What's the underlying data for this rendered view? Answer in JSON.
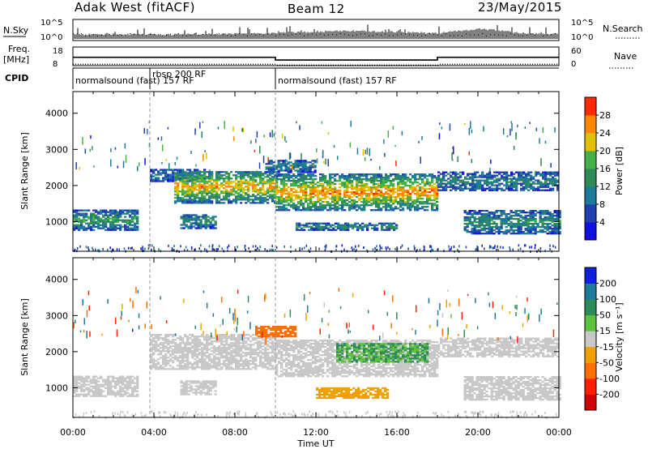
{
  "header": {
    "station": "Adak West (fitACF)",
    "beam": "Beam 12",
    "date": "23/May/2015"
  },
  "labels": {
    "nsky": "N.Sky",
    "nsearch": "N.Search",
    "freq": "Freq.",
    "freq_unit": "[MHz]",
    "nave": "Nave",
    "cpid": "CPID",
    "ylabel": "Slant Range [km]",
    "xlabel": "Time UT",
    "power_label": "Power [dB]",
    "velocity_label": "Velocity [m s⁻¹]"
  },
  "noise_ticks": {
    "left": [
      "10^5",
      "10^0"
    ],
    "right": [
      "10^5",
      "10^0"
    ]
  },
  "freq_ticks": {
    "left": [
      "18",
      "8"
    ],
    "right": [
      "60",
      "0"
    ]
  },
  "cpid_segments": [
    {
      "name": "normalsound (fast) 157 RF",
      "start": 0,
      "end": 3.8
    },
    {
      "name": "rbsp 200 RF",
      "start": 3.8,
      "end": 10.0
    },
    {
      "name": "normalsound (fast) 157 RF",
      "start": 10.0,
      "end": 24
    }
  ],
  "chart_data": [
    {
      "type": "line",
      "name": "noise-panel",
      "ylim": [
        0,
        5
      ],
      "series": [
        {
          "name": "N.Sky",
          "x": [
            0,
            2,
            4,
            6,
            8,
            10,
            12,
            14,
            16,
            18,
            19,
            20,
            21,
            22,
            24
          ],
          "values": [
            1.2,
            1.3,
            1.2,
            1.3,
            1.4,
            1.6,
            1.9,
            2.1,
            1.8,
            1.5,
            2.0,
            2.6,
            2.2,
            1.6,
            1.3
          ]
        }
      ]
    },
    {
      "type": "line",
      "name": "frequency-panel",
      "ylim": [
        8,
        18
      ],
      "series": [
        {
          "name": "Freq.",
          "x": [
            0,
            10.0,
            10.0,
            18.0,
            18.0,
            24
          ],
          "values": [
            12.5,
            12.5,
            11.0,
            11.0,
            12.5,
            12.5
          ]
        },
        {
          "name": "Nave",
          "x": [
            0,
            10.0,
            10.0,
            18.0,
            18.0,
            24
          ],
          "values": [
            9.0,
            9.0,
            8.6,
            8.6,
            9.0,
            9.0
          ]
        }
      ]
    },
    {
      "type": "heatmap",
      "name": "power-panel",
      "xlabel": "Time UT",
      "ylabel": "Slant Range [km]",
      "xlim": [
        0,
        24
      ],
      "ylim": [
        180,
        4600
      ],
      "xticks": [
        "00:00",
        "04:00",
        "08:00",
        "12:00",
        "16:00",
        "20:00",
        "00:00"
      ],
      "yticks": [
        1000,
        2000,
        3000,
        4000
      ],
      "colorbar": {
        "label": "Power [dB]",
        "ticks": [
          "4",
          "8",
          "12",
          "16",
          "20",
          "24",
          "28"
        ],
        "colors": [
          "#1010e0",
          "#2040b0",
          "#1e7a9a",
          "#2e8b57",
          "#48b048",
          "#e0c000",
          "#ff8800",
          "#ff2a00"
        ]
      },
      "bands": [
        {
          "t": [
            0,
            3.2
          ],
          "range": [
            750,
            1300
          ],
          "level": 0.35
        },
        {
          "t": [
            3.8,
            6.5
          ],
          "range": [
            2100,
            2450
          ],
          "level": 0.2
        },
        {
          "t": [
            5.0,
            10.0
          ],
          "range": [
            1500,
            2400
          ],
          "level": 0.65
        },
        {
          "t": [
            5.3,
            7.0
          ],
          "range": [
            800,
            1200
          ],
          "level": 0.3
        },
        {
          "t": [
            9.5,
            12.0
          ],
          "range": [
            2350,
            2700
          ],
          "level": 0.2
        },
        {
          "t": [
            10.0,
            18.0
          ],
          "range": [
            1300,
            2300
          ],
          "level": 0.7
        },
        {
          "t": [
            11.0,
            16.0
          ],
          "range": [
            750,
            950
          ],
          "level": 0.3
        },
        {
          "t": [
            18.0,
            24.0
          ],
          "range": [
            1850,
            2350
          ],
          "level": 0.25
        },
        {
          "t": [
            19.3,
            24.0
          ],
          "range": [
            650,
            1300
          ],
          "level": 0.3
        }
      ]
    },
    {
      "type": "heatmap",
      "name": "velocity-panel",
      "xlabel": "Time UT",
      "ylabel": "Slant Range [km]",
      "xlim": [
        0,
        24
      ],
      "ylim": [
        180,
        4600
      ],
      "xticks": [
        "00:00",
        "04:00",
        "08:00",
        "12:00",
        "16:00",
        "20:00",
        "00:00"
      ],
      "yticks": [
        1000,
        2000,
        3000,
        4000
      ],
      "colorbar": {
        "label": "Velocity [m s⁻¹]",
        "ticks": [
          "200",
          "100",
          "50",
          "15",
          "-15",
          "-50",
          "-100",
          "-200"
        ],
        "colors": [
          "#1020e0",
          "#1e7a9a",
          "#2e8b57",
          "#60c040",
          "#c8c8c8",
          "#f0a000",
          "#ff7000",
          "#ff2000",
          "#d00000"
        ]
      },
      "bands": [
        {
          "t": [
            0,
            3.2
          ],
          "range": [
            750,
            1300
          ],
          "value": 0
        },
        {
          "t": [
            3.8,
            10.0
          ],
          "range": [
            1500,
            2450
          ],
          "value": 0
        },
        {
          "t": [
            5.3,
            7.0
          ],
          "range": [
            800,
            1200
          ],
          "value": 0
        },
        {
          "t": [
            9.0,
            11.0
          ],
          "range": [
            2400,
            2700
          ],
          "value": -60
        },
        {
          "t": [
            10.0,
            18.0
          ],
          "range": [
            1300,
            2300
          ],
          "value": 5
        },
        {
          "t": [
            13.0,
            17.5
          ],
          "range": [
            1700,
            2200
          ],
          "value": 30
        },
        {
          "t": [
            12.0,
            15.5
          ],
          "range": [
            700,
            1000
          ],
          "value": -40
        },
        {
          "t": [
            18.0,
            24.0
          ],
          "range": [
            1850,
            2350
          ],
          "value": 0
        },
        {
          "t": [
            19.3,
            24.0
          ],
          "range": [
            650,
            1300
          ],
          "value": 0
        }
      ]
    }
  ]
}
